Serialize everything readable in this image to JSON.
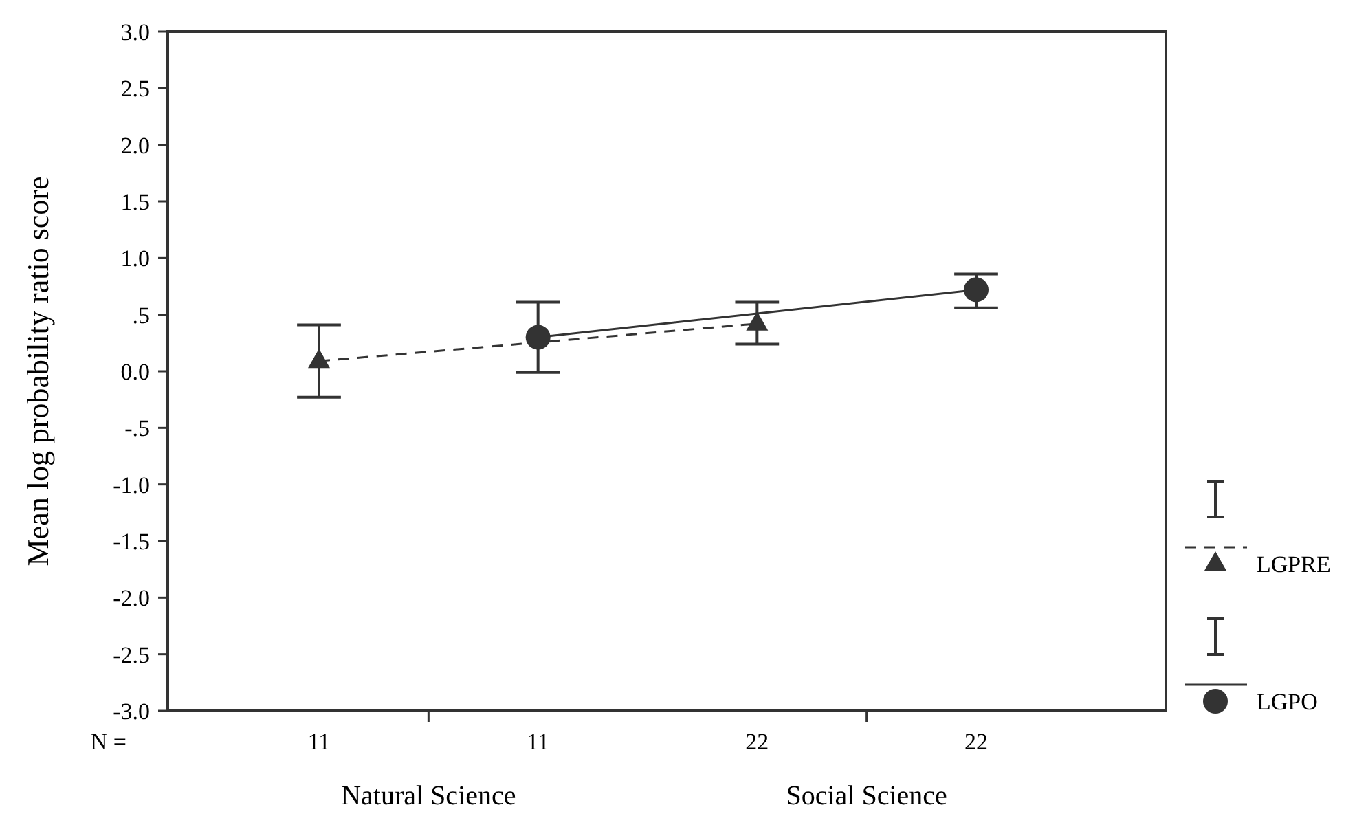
{
  "chart_data": {
    "type": "line",
    "ylabel": "Mean log probability ratio score",
    "categories": [
      "11",
      "11",
      "22",
      "22"
    ],
    "series": [
      {
        "name": "LGPRE",
        "color": "#333333",
        "values": [
          0.09,
          null,
          0.42,
          null
        ],
        "errors": [
          [
            -0.23,
            0.41
          ],
          null,
          [
            0.24,
            0.61
          ],
          null
        ],
        "marker": "triangle",
        "line_style": "dashed"
      },
      {
        "name": "LGPO",
        "color": "#333333",
        "values": [
          null,
          0.3,
          null,
          0.72
        ],
        "errors": [
          null,
          [
            -0.01,
            0.61
          ],
          null,
          [
            0.56,
            0.86
          ]
        ],
        "marker": "circle",
        "line_style": "solid"
      }
    ],
    "ylim": [
      -3,
      3
    ],
    "yticks": [
      {
        "value": -3,
        "label": "-3.0"
      },
      {
        "value": -2.5,
        "label": "-2.5"
      },
      {
        "value": -2,
        "label": "-2.0"
      },
      {
        "value": -1.5,
        "label": "-1.5"
      },
      {
        "value": -1,
        "label": "-1.0"
      },
      {
        "value": -0.5,
        "label": "-.5"
      },
      {
        "value": 0,
        "label": "0.0"
      },
      {
        "value": 0.5,
        "label": ".5"
      },
      {
        "value": 1,
        "label": "1.0"
      },
      {
        "value": 1.5,
        "label": "1.5"
      },
      {
        "value": 2,
        "label": "2.0"
      },
      {
        "value": 2.5,
        "label": "2.5"
      },
      {
        "value": 3,
        "label": "3.0"
      }
    ],
    "annotations": [
      "N =",
      "Natural Science",
      "Social Science"
    ],
    "grid": false,
    "legend": "right"
  }
}
